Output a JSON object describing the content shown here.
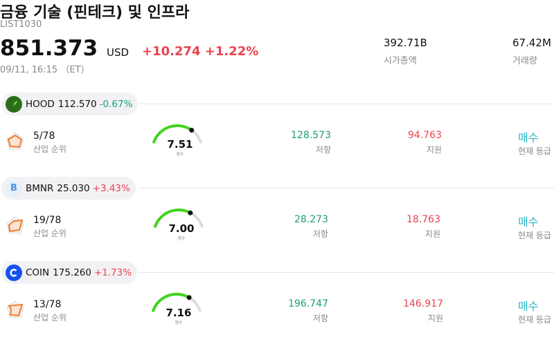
{
  "header": {
    "title": "금융 기술 (핀테크) 및 인프라",
    "code": "LIST1030",
    "price": "851.373",
    "currency": "USD",
    "change": "+10.274 +1.22%",
    "timestamp": "09/11, 16:15 （ET）",
    "market_cap": {
      "value": "392.71B",
      "label": "시가총액"
    },
    "volume": {
      "value": "67.42M",
      "label": "거래량"
    }
  },
  "colors": {
    "up": "#e8424f",
    "down": "#1a9c7a",
    "rating": "#27b4c6",
    "gauge": "#3fd41c",
    "gauge_track": "#dcdce6"
  },
  "gauge_label": "점수",
  "stocks": [
    {
      "ticker": "HOOD",
      "price": "112.570",
      "change": "-0.67%",
      "direction": "down",
      "logo_icon": "feather-icon",
      "logo_bg": "#2a6e1a",
      "rank": "5/78",
      "rank_label": "산업 순위",
      "score": "7.51",
      "score_fraction": 0.751,
      "resistance": "128.573",
      "resistance_label": "저항",
      "support": "94.763",
      "support_label": "지원",
      "rating": "매수",
      "rating_label": "현재 등급"
    },
    {
      "ticker": "BMNR",
      "price": "25.030",
      "change": "+3.43%",
      "direction": "up",
      "logo_icon": "letter-b-icon",
      "logo_letter": "B",
      "logo_bg": "#e6f0fb",
      "rank": "19/78",
      "rank_label": "산업 순위",
      "score": "7.00",
      "score_fraction": 0.7,
      "resistance": "28.273",
      "resistance_label": "저항",
      "support": "18.763",
      "support_label": "지원",
      "rating": "매수",
      "rating_label": "현재 등급"
    },
    {
      "ticker": "COIN",
      "price": "175.260",
      "change": "+1.73%",
      "direction": "up",
      "logo_icon": "coinbase-icon",
      "logo_bg": "#1652f0",
      "rank": "13/78",
      "rank_label": "산업 순위",
      "score": "7.16",
      "score_fraction": 0.716,
      "resistance": "196.747",
      "resistance_label": "저항",
      "support": "146.917",
      "support_label": "지원",
      "rating": "매수",
      "rating_label": "현재 등급"
    }
  ]
}
